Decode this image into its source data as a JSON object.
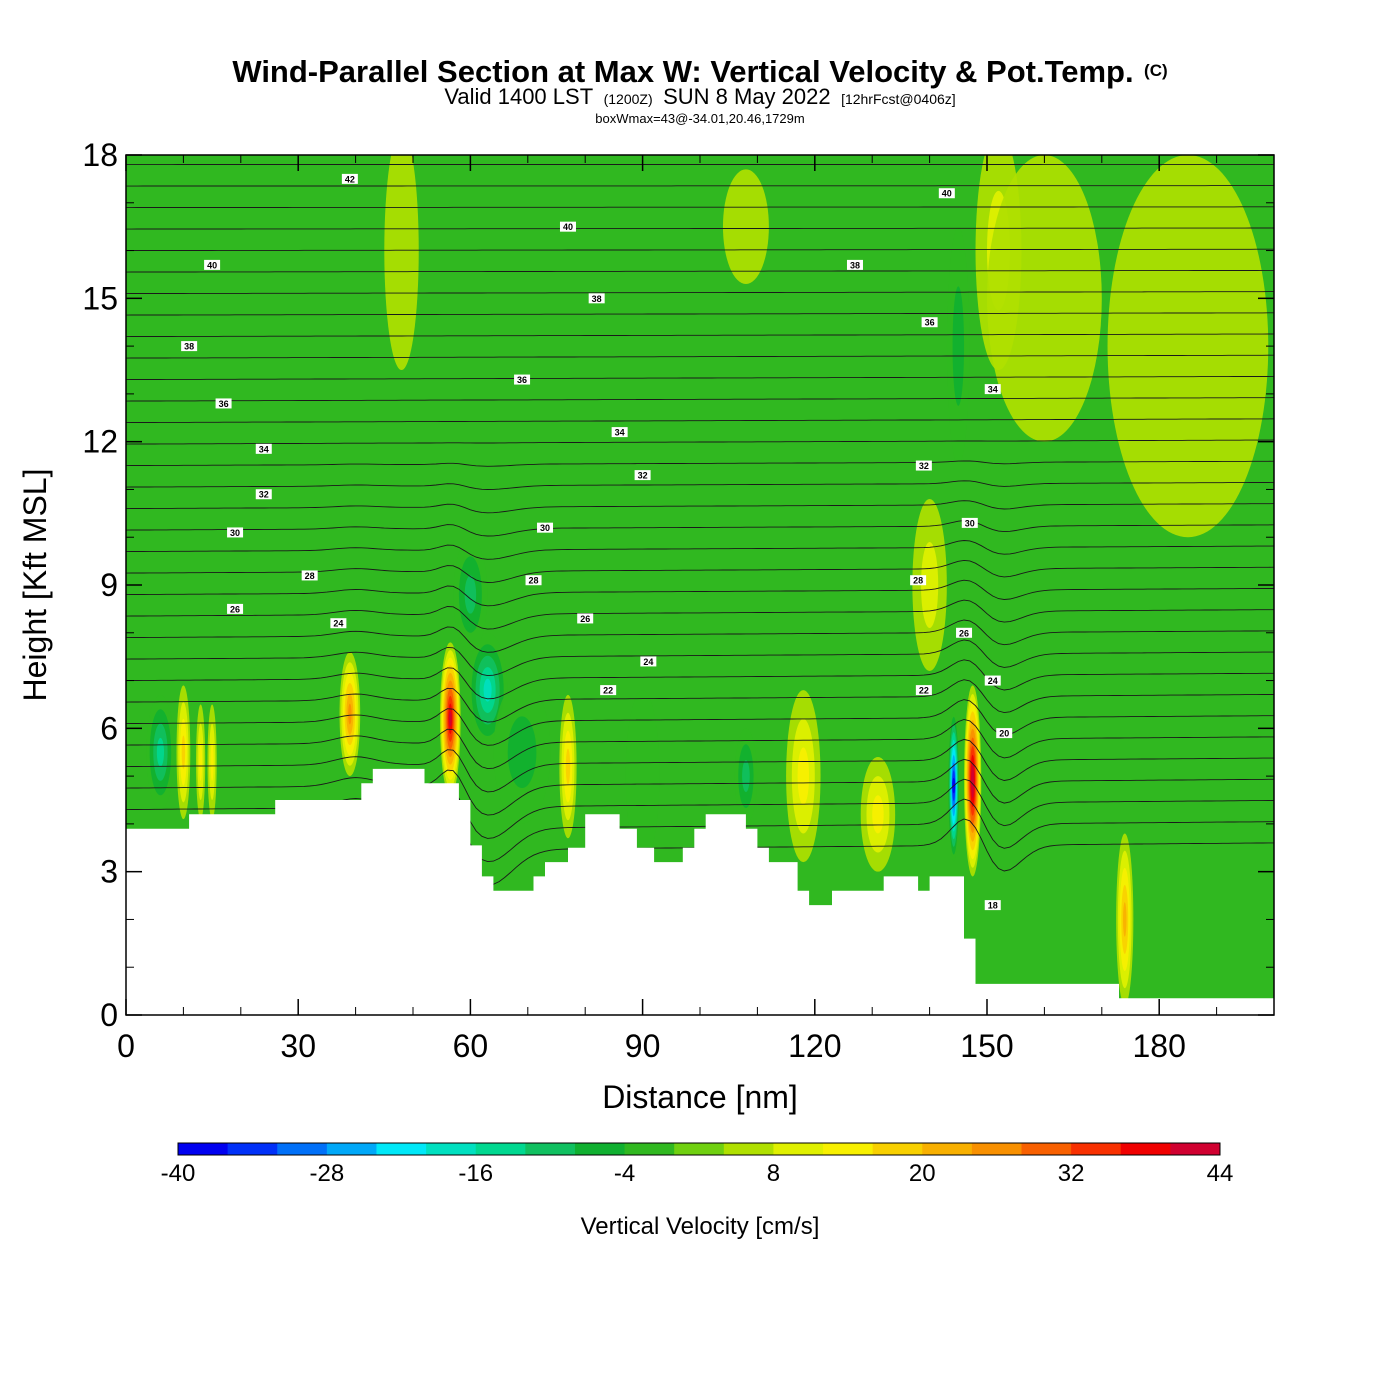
{
  "title": {
    "main": "Wind-Parallel Section at Max W: Vertical Velocity & Pot.Temp.",
    "copyright": "(C)",
    "valid_prefix": "Valid 1400 LST",
    "valid_utc": "(1200Z)",
    "valid_date": "SUN 8 May 2022",
    "forecast": "[12hrFcst@0406z]",
    "box_info": "boxWmax=43@-34.01,20.46,1729m"
  },
  "colorbar": {
    "label": "Vertical Velocity [cm/s]",
    "tick_labels": [
      "-40",
      "-28",
      "-16",
      "-4",
      "8",
      "20",
      "32",
      "44"
    ],
    "colors": [
      "#0000f0",
      "#0030f8",
      "#0070f8",
      "#00a8f8",
      "#00e8f8",
      "#00e0c0",
      "#00d890",
      "#10c060",
      "#10b030",
      "#30b820",
      "#70d010",
      "#b0e000",
      "#e0f000",
      "#f8f000",
      "#f8d000",
      "#f8b000",
      "#f89000",
      "#f86000",
      "#f83000",
      "#f00000",
      "#d00030"
    ]
  },
  "chart_data": {
    "type": "heatmap",
    "title": "Wind-Parallel Section at Max W: Vertical Velocity & Pot.Temp.",
    "xlabel": "Distance [nm]",
    "ylabel": "Height [Kft MSL]",
    "xlim": [
      0,
      200
    ],
    "ylim": [
      0,
      18
    ],
    "x_ticks": [
      0,
      30,
      60,
      90,
      120,
      150,
      180
    ],
    "x_tick_labels": [
      "0",
      "30",
      "60",
      "90",
      "120",
      "150",
      "180"
    ],
    "y_ticks": [
      0,
      3,
      6,
      9,
      12,
      15,
      18
    ],
    "y_tick_labels": [
      "0",
      "3",
      "6",
      "9",
      "12",
      "15",
      "18"
    ],
    "colorbar_min": -40,
    "colorbar_max": 52,
    "colorbar_step": 4,
    "background_color": "#30b820",
    "terrain": [
      {
        "x": 0,
        "y": 3.9
      },
      {
        "x": 11,
        "y": 3.9
      },
      {
        "x": 11,
        "y": 4.2
      },
      {
        "x": 26,
        "y": 4.2
      },
      {
        "x": 26,
        "y": 4.5
      },
      {
        "x": 41,
        "y": 4.5
      },
      {
        "x": 41,
        "y": 4.85
      },
      {
        "x": 43,
        "y": 4.85
      },
      {
        "x": 43,
        "y": 5.15
      },
      {
        "x": 52,
        "y": 5.15
      },
      {
        "x": 52,
        "y": 4.85
      },
      {
        "x": 58,
        "y": 4.85
      },
      {
        "x": 58,
        "y": 4.5
      },
      {
        "x": 60,
        "y": 4.5
      },
      {
        "x": 60,
        "y": 3.55
      },
      {
        "x": 62,
        "y": 3.55
      },
      {
        "x": 62,
        "y": 2.9
      },
      {
        "x": 64,
        "y": 2.9
      },
      {
        "x": 64,
        "y": 2.6
      },
      {
        "x": 71,
        "y": 2.6
      },
      {
        "x": 71,
        "y": 2.9
      },
      {
        "x": 73,
        "y": 2.9
      },
      {
        "x": 73,
        "y": 3.2
      },
      {
        "x": 77,
        "y": 3.2
      },
      {
        "x": 77,
        "y": 3.5
      },
      {
        "x": 80,
        "y": 3.5
      },
      {
        "x": 80,
        "y": 4.2
      },
      {
        "x": 86,
        "y": 4.2
      },
      {
        "x": 86,
        "y": 3.9
      },
      {
        "x": 89,
        "y": 3.9
      },
      {
        "x": 89,
        "y": 3.5
      },
      {
        "x": 92,
        "y": 3.5
      },
      {
        "x": 92,
        "y": 3.2
      },
      {
        "x": 97,
        "y": 3.2
      },
      {
        "x": 97,
        "y": 3.5
      },
      {
        "x": 99,
        "y": 3.5
      },
      {
        "x": 99,
        "y": 3.9
      },
      {
        "x": 101,
        "y": 3.9
      },
      {
        "x": 101,
        "y": 4.2
      },
      {
        "x": 108,
        "y": 4.2
      },
      {
        "x": 108,
        "y": 3.9
      },
      {
        "x": 110,
        "y": 3.9
      },
      {
        "x": 110,
        "y": 3.5
      },
      {
        "x": 112,
        "y": 3.5
      },
      {
        "x": 112,
        "y": 3.2
      },
      {
        "x": 117,
        "y": 3.2
      },
      {
        "x": 117,
        "y": 2.6
      },
      {
        "x": 119,
        "y": 2.6
      },
      {
        "x": 119,
        "y": 2.3
      },
      {
        "x": 123,
        "y": 2.3
      },
      {
        "x": 123,
        "y": 2.6
      },
      {
        "x": 132,
        "y": 2.6
      },
      {
        "x": 132,
        "y": 2.9
      },
      {
        "x": 138,
        "y": 2.9
      },
      {
        "x": 138,
        "y": 2.6
      },
      {
        "x": 140,
        "y": 2.6
      },
      {
        "x": 140,
        "y": 2.9
      },
      {
        "x": 146,
        "y": 2.9
      },
      {
        "x": 146,
        "y": 1.6
      },
      {
        "x": 148,
        "y": 1.6
      },
      {
        "x": 148,
        "y": 0.65
      },
      {
        "x": 173,
        "y": 0.65
      },
      {
        "x": 173,
        "y": 0.35
      },
      {
        "x": 200,
        "y": 0.35
      }
    ],
    "w_features": [
      {
        "x": 10,
        "y": 5.5,
        "rx": 1.2,
        "ry": 1.4,
        "w": 14
      },
      {
        "x": 13,
        "y": 5.3,
        "rx": 0.8,
        "ry": 1.2,
        "w": 10
      },
      {
        "x": 15,
        "y": 5.3,
        "rx": 0.8,
        "ry": 1.2,
        "w": 10
      },
      {
        "x": 6,
        "y": 5.5,
        "rx": 2.5,
        "ry": 1.2,
        "w": -14
      },
      {
        "x": 39,
        "y": 6.3,
        "rx": 1.8,
        "ry": 1.3,
        "w": 22
      },
      {
        "x": 56.5,
        "y": 6.2,
        "rx": 1.8,
        "ry": 1.6,
        "w": 38
      },
      {
        "x": 63,
        "y": 6.8,
        "rx": 3.5,
        "ry": 1.2,
        "w": -18
      },
      {
        "x": 69,
        "y": 5.5,
        "rx": 5,
        "ry": 1.5,
        "w": -8
      },
      {
        "x": 77,
        "y": 5.2,
        "rx": 1.5,
        "ry": 1.5,
        "w": 16
      },
      {
        "x": 90,
        "y": 5.0,
        "rx": 3,
        "ry": 1.8,
        "w": -4
      },
      {
        "x": 108,
        "y": 5.0,
        "rx": 2,
        "ry": 1.0,
        "w": -10
      },
      {
        "x": 118,
        "y": 5.0,
        "rx": 3,
        "ry": 1.8,
        "w": 12
      },
      {
        "x": 131,
        "y": 4.2,
        "rx": 3,
        "ry": 1.2,
        "w": 12
      },
      {
        "x": 144.2,
        "y": 4.8,
        "rx": 1.0,
        "ry": 1.6,
        "w": -40
      },
      {
        "x": 147.5,
        "y": 4.9,
        "rx": 1.5,
        "ry": 2.0,
        "w": 44
      },
      {
        "x": 174,
        "y": 2.0,
        "rx": 1.5,
        "ry": 1.8,
        "w": 20
      },
      {
        "x": 60,
        "y": 8.8,
        "rx": 3,
        "ry": 1.2,
        "w": -10
      },
      {
        "x": 140,
        "y": 9.0,
        "rx": 3,
        "ry": 1.8,
        "w": 6
      },
      {
        "x": 48,
        "y": 16,
        "rx": 3,
        "ry": 2.5,
        "w": 4
      },
      {
        "x": 152,
        "y": 16,
        "rx": 4,
        "ry": 2.5,
        "w": 6
      },
      {
        "x": 185,
        "y": 14,
        "rx": 14,
        "ry": 4,
        "w": 4
      },
      {
        "x": 160,
        "y": 15,
        "rx": 10,
        "ry": 3,
        "w": 4
      },
      {
        "x": 108,
        "y": 16.5,
        "rx": 4,
        "ry": 1.2,
        "w": 4
      },
      {
        "x": 145,
        "y": 14,
        "rx": 2,
        "ry": 2.5,
        "w": -6
      }
    ],
    "theta_contours": {
      "y_left_start": 3.4,
      "y_left_end": 17.8,
      "count": 33,
      "labels": [
        {
          "value": "42",
          "x": 39,
          "y": 17.5
        },
        {
          "value": "40",
          "x": 15,
          "y": 15.7
        },
        {
          "value": "38",
          "x": 11,
          "y": 14.0
        },
        {
          "value": "36",
          "x": 17,
          "y": 12.8
        },
        {
          "value": "34",
          "x": 24,
          "y": 11.85
        },
        {
          "value": "32",
          "x": 24,
          "y": 10.9
        },
        {
          "value": "30",
          "x": 19,
          "y": 10.1
        },
        {
          "value": "28",
          "x": 32,
          "y": 9.2
        },
        {
          "value": "26",
          "x": 19,
          "y": 8.5
        },
        {
          "value": "24",
          "x": 37,
          "y": 8.2
        },
        {
          "value": "40",
          "x": 77,
          "y": 16.5
        },
        {
          "value": "38",
          "x": 82,
          "y": 15.0
        },
        {
          "value": "36",
          "x": 69,
          "y": 13.3
        },
        {
          "value": "34",
          "x": 86,
          "y": 12.2
        },
        {
          "value": "32",
          "x": 90,
          "y": 11.3
        },
        {
          "value": "30",
          "x": 73,
          "y": 10.2
        },
        {
          "value": "28",
          "x": 71,
          "y": 9.1
        },
        {
          "value": "26",
          "x": 80,
          "y": 8.3
        },
        {
          "value": "24",
          "x": 91,
          "y": 7.4
        },
        {
          "value": "22",
          "x": 84,
          "y": 6.8
        },
        {
          "value": "40",
          "x": 143,
          "y": 17.2
        },
        {
          "value": "38",
          "x": 127,
          "y": 15.7
        },
        {
          "value": "36",
          "x": 140,
          "y": 14.5
        },
        {
          "value": "34",
          "x": 151,
          "y": 13.1
        },
        {
          "value": "32",
          "x": 139,
          "y": 11.5
        },
        {
          "value": "30",
          "x": 147,
          "y": 10.3
        },
        {
          "value": "28",
          "x": 138,
          "y": 9.1
        },
        {
          "value": "26",
          "x": 146,
          "y": 8.0
        },
        {
          "value": "24",
          "x": 151,
          "y": 7.0
        },
        {
          "value": "22",
          "x": 139,
          "y": 6.8
        },
        {
          "value": "20",
          "x": 153,
          "y": 5.9
        },
        {
          "value": "18",
          "x": 151,
          "y": 2.3
        }
      ]
    }
  }
}
